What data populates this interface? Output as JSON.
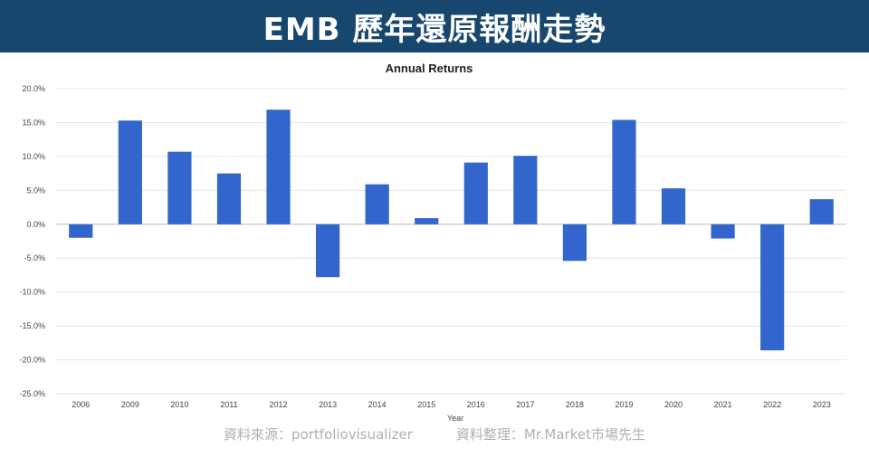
{
  "header": {
    "title": "EMB 歷年還原報酬走勢"
  },
  "chart_data": {
    "type": "bar",
    "title": "Annual Returns",
    "xlabel": "Year",
    "ylabel": "",
    "ylim": [
      -25,
      20
    ],
    "yticks": [
      20,
      15,
      10,
      5,
      0,
      -5,
      -10,
      -15,
      -20,
      -25
    ],
    "ytick_labels": [
      "20.0%",
      "15.0%",
      "10.0%",
      "5.0%",
      "0.0%",
      "-5.0%",
      "-10.0%",
      "-15.0%",
      "-20.0%",
      "-25.0%"
    ],
    "grid": true,
    "bar_color": "#3366cc",
    "categories": [
      "2006",
      "2009",
      "2010",
      "2011",
      "2012",
      "2013",
      "2014",
      "2015",
      "2016",
      "2017",
      "2018",
      "2019",
      "2020",
      "2021",
      "2022",
      "2023"
    ],
    "values": [
      -2.0,
      15.3,
      10.7,
      7.5,
      16.9,
      -7.8,
      5.9,
      0.9,
      9.1,
      10.1,
      -5.4,
      15.4,
      5.3,
      -2.1,
      -18.6,
      3.7
    ]
  },
  "footer": {
    "source": "資料來源：portfoliovisualizer",
    "compiled": "資料整理：Mr.Market市場先生"
  }
}
